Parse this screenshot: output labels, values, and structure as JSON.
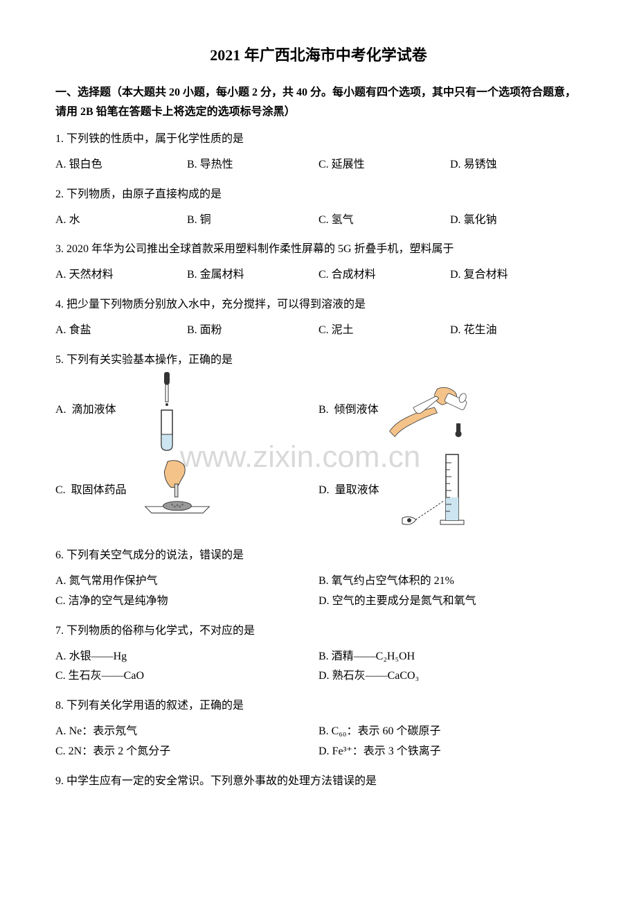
{
  "title": "2021 年广西北海市中考化学试卷",
  "section_header": "一、选择题（本大题共 20 小题，每小题 2 分，共 40 分。每小题有四个选项，其中只有一个选项符合题意，请用 2B 铅笔在答题卡上将选定的选项标号涂黑）",
  "watermark": "www.zixin.com.cn",
  "questions": [
    {
      "num": "1.",
      "stem": "下列铁的性质中，属于化学性质的是",
      "layout": "row4",
      "options": [
        {
          "label": "A.",
          "text": "银白色"
        },
        {
          "label": "B.",
          "text": "导热性"
        },
        {
          "label": "C.",
          "text": "延展性"
        },
        {
          "label": "D.",
          "text": "易锈蚀"
        }
      ]
    },
    {
      "num": "2.",
      "stem": "下列物质，由原子直接构成的是",
      "layout": "row4",
      "options": [
        {
          "label": "A.",
          "text": "水"
        },
        {
          "label": "B.",
          "text": "铜"
        },
        {
          "label": "C.",
          "text": "氢气"
        },
        {
          "label": "D.",
          "text": "氯化钠"
        }
      ]
    },
    {
      "num": "3.",
      "stem": "2020 年华为公司推出全球首款采用塑料制作柔性屏幕的 5G 折叠手机，塑料属于",
      "layout": "row4",
      "options": [
        {
          "label": "A.",
          "text": "天然材料"
        },
        {
          "label": "B.",
          "text": "金属材料"
        },
        {
          "label": "C.",
          "text": "合成材料"
        },
        {
          "label": "D.",
          "text": "复合材料"
        }
      ]
    },
    {
      "num": "4.",
      "stem": "把少量下列物质分别放入水中，充分搅拌，可以得到溶液的是",
      "layout": "row4",
      "options": [
        {
          "label": "A.",
          "text": "食盐"
        },
        {
          "label": "B.",
          "text": "面粉"
        },
        {
          "label": "C.",
          "text": "泥土"
        },
        {
          "label": "D.",
          "text": "花生油"
        }
      ]
    },
    {
      "num": "5.",
      "stem": "下列有关实验基本操作，正确的是",
      "layout": "image2x2",
      "options": [
        {
          "label": "A.",
          "text": "滴加液体",
          "icon": "dropper-tube"
        },
        {
          "label": "B.",
          "text": "倾倒液体",
          "icon": "pour-tube"
        },
        {
          "label": "C.",
          "text": "取固体药品",
          "icon": "hand-powder"
        },
        {
          "label": "D.",
          "text": "量取液体",
          "icon": "cylinder-eye"
        }
      ]
    },
    {
      "num": "6.",
      "stem": "下列有关空气成分的说法，错误的是",
      "layout": "row2",
      "options": [
        {
          "label": "A.",
          "text": "氮气常用作保护气"
        },
        {
          "label": "B.",
          "text": "氧气约占空气体积的 21%"
        },
        {
          "label": "C.",
          "text": "洁净的空气是纯净物"
        },
        {
          "label": "D.",
          "text": "空气的主要成分是氮气和氧气"
        }
      ]
    },
    {
      "num": "7.",
      "stem": "下列物质的俗称与化学式，不对应的是",
      "layout": "row2",
      "options": [
        {
          "label": "A.",
          "text": "水银——Hg"
        },
        {
          "label": "B.",
          "text": "酒精——C₂H₅OH"
        },
        {
          "label": "C.",
          "text": "生石灰——CaO"
        },
        {
          "label": "D.",
          "text": "熟石灰——CaCO₃"
        }
      ]
    },
    {
      "num": "8.",
      "stem": "下列有关化学用语的叙述，正确的是",
      "layout": "row2",
      "options": [
        {
          "label": "A.",
          "text": "Ne：表示氖气"
        },
        {
          "label": "B.",
          "text": "C₆₀：表示 60 个碳原子"
        },
        {
          "label": "C.",
          "text": "2N：表示 2 个氮分子"
        },
        {
          "label": "D.",
          "text": "Fe³⁺：表示 3 个铁离子"
        }
      ]
    },
    {
      "num": "9.",
      "stem": "中学生应有一定的安全常识。下列意外事故的处理方法错误的是",
      "layout": "none",
      "options": []
    }
  ],
  "colors": {
    "text": "#000000",
    "background": "#ffffff",
    "watermark": "rgba(160,160,160,0.4)",
    "illustration_skin": "#f4c38a",
    "illustration_outline": "#333333",
    "illustration_liquid": "#cce5f0"
  }
}
